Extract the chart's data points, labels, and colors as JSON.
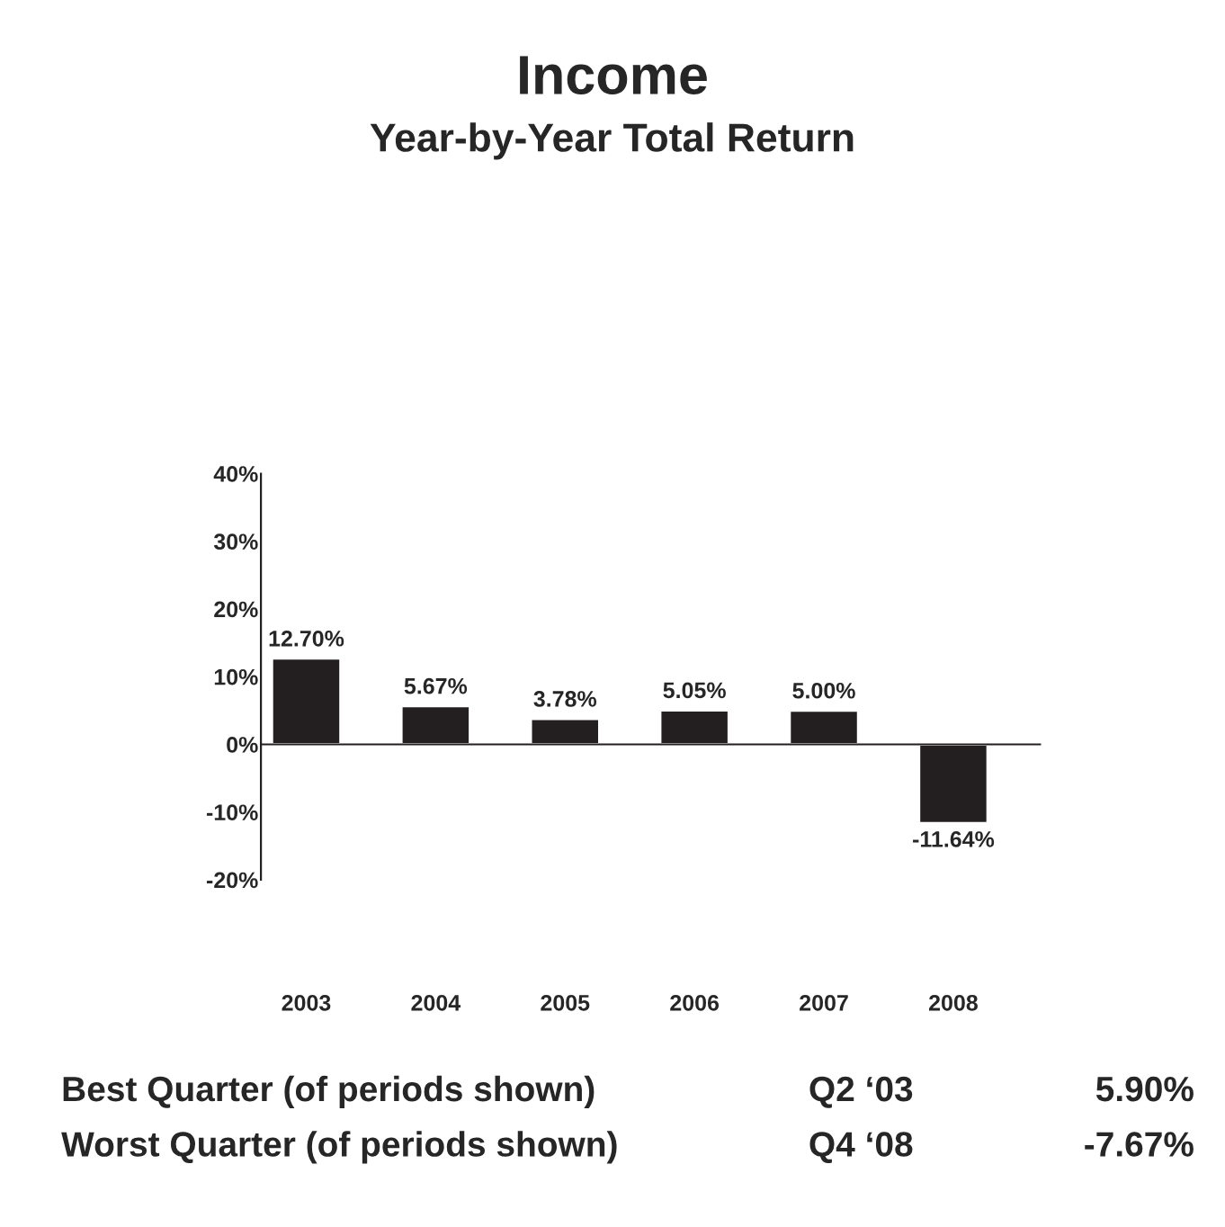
{
  "chart_data": {
    "type": "bar",
    "title": "Income",
    "subtitle": "Year-by-Year Total Return",
    "categories": [
      "2003",
      "2004",
      "2005",
      "2006",
      "2007",
      "2008"
    ],
    "values": [
      12.7,
      5.67,
      3.78,
      5.05,
      5.0,
      -11.64
    ],
    "value_labels": [
      "12.70%",
      "5.67%",
      "3.78%",
      "5.05%",
      "5.00%",
      "-11.64%"
    ],
    "color": "#231f20",
    "ylim": [
      -20,
      40
    ],
    "yticks": [
      {
        "value": -20,
        "label": "-20%"
      },
      {
        "value": -10,
        "label": "-10%"
      },
      {
        "value": 0,
        "label": "0%"
      },
      {
        "value": 10,
        "label": "10%"
      },
      {
        "value": 20,
        "label": "20%"
      },
      {
        "value": 30,
        "label": "30%"
      },
      {
        "value": 40,
        "label": "40%"
      }
    ],
    "legend": false,
    "annotations": [
      "Best Quarter (of periods shown)",
      "Q2 ‘03",
      "5.90%",
      "Worst Quarter (of periods shown)",
      "Q4 ‘08",
      "-7.67%"
    ]
  }
}
